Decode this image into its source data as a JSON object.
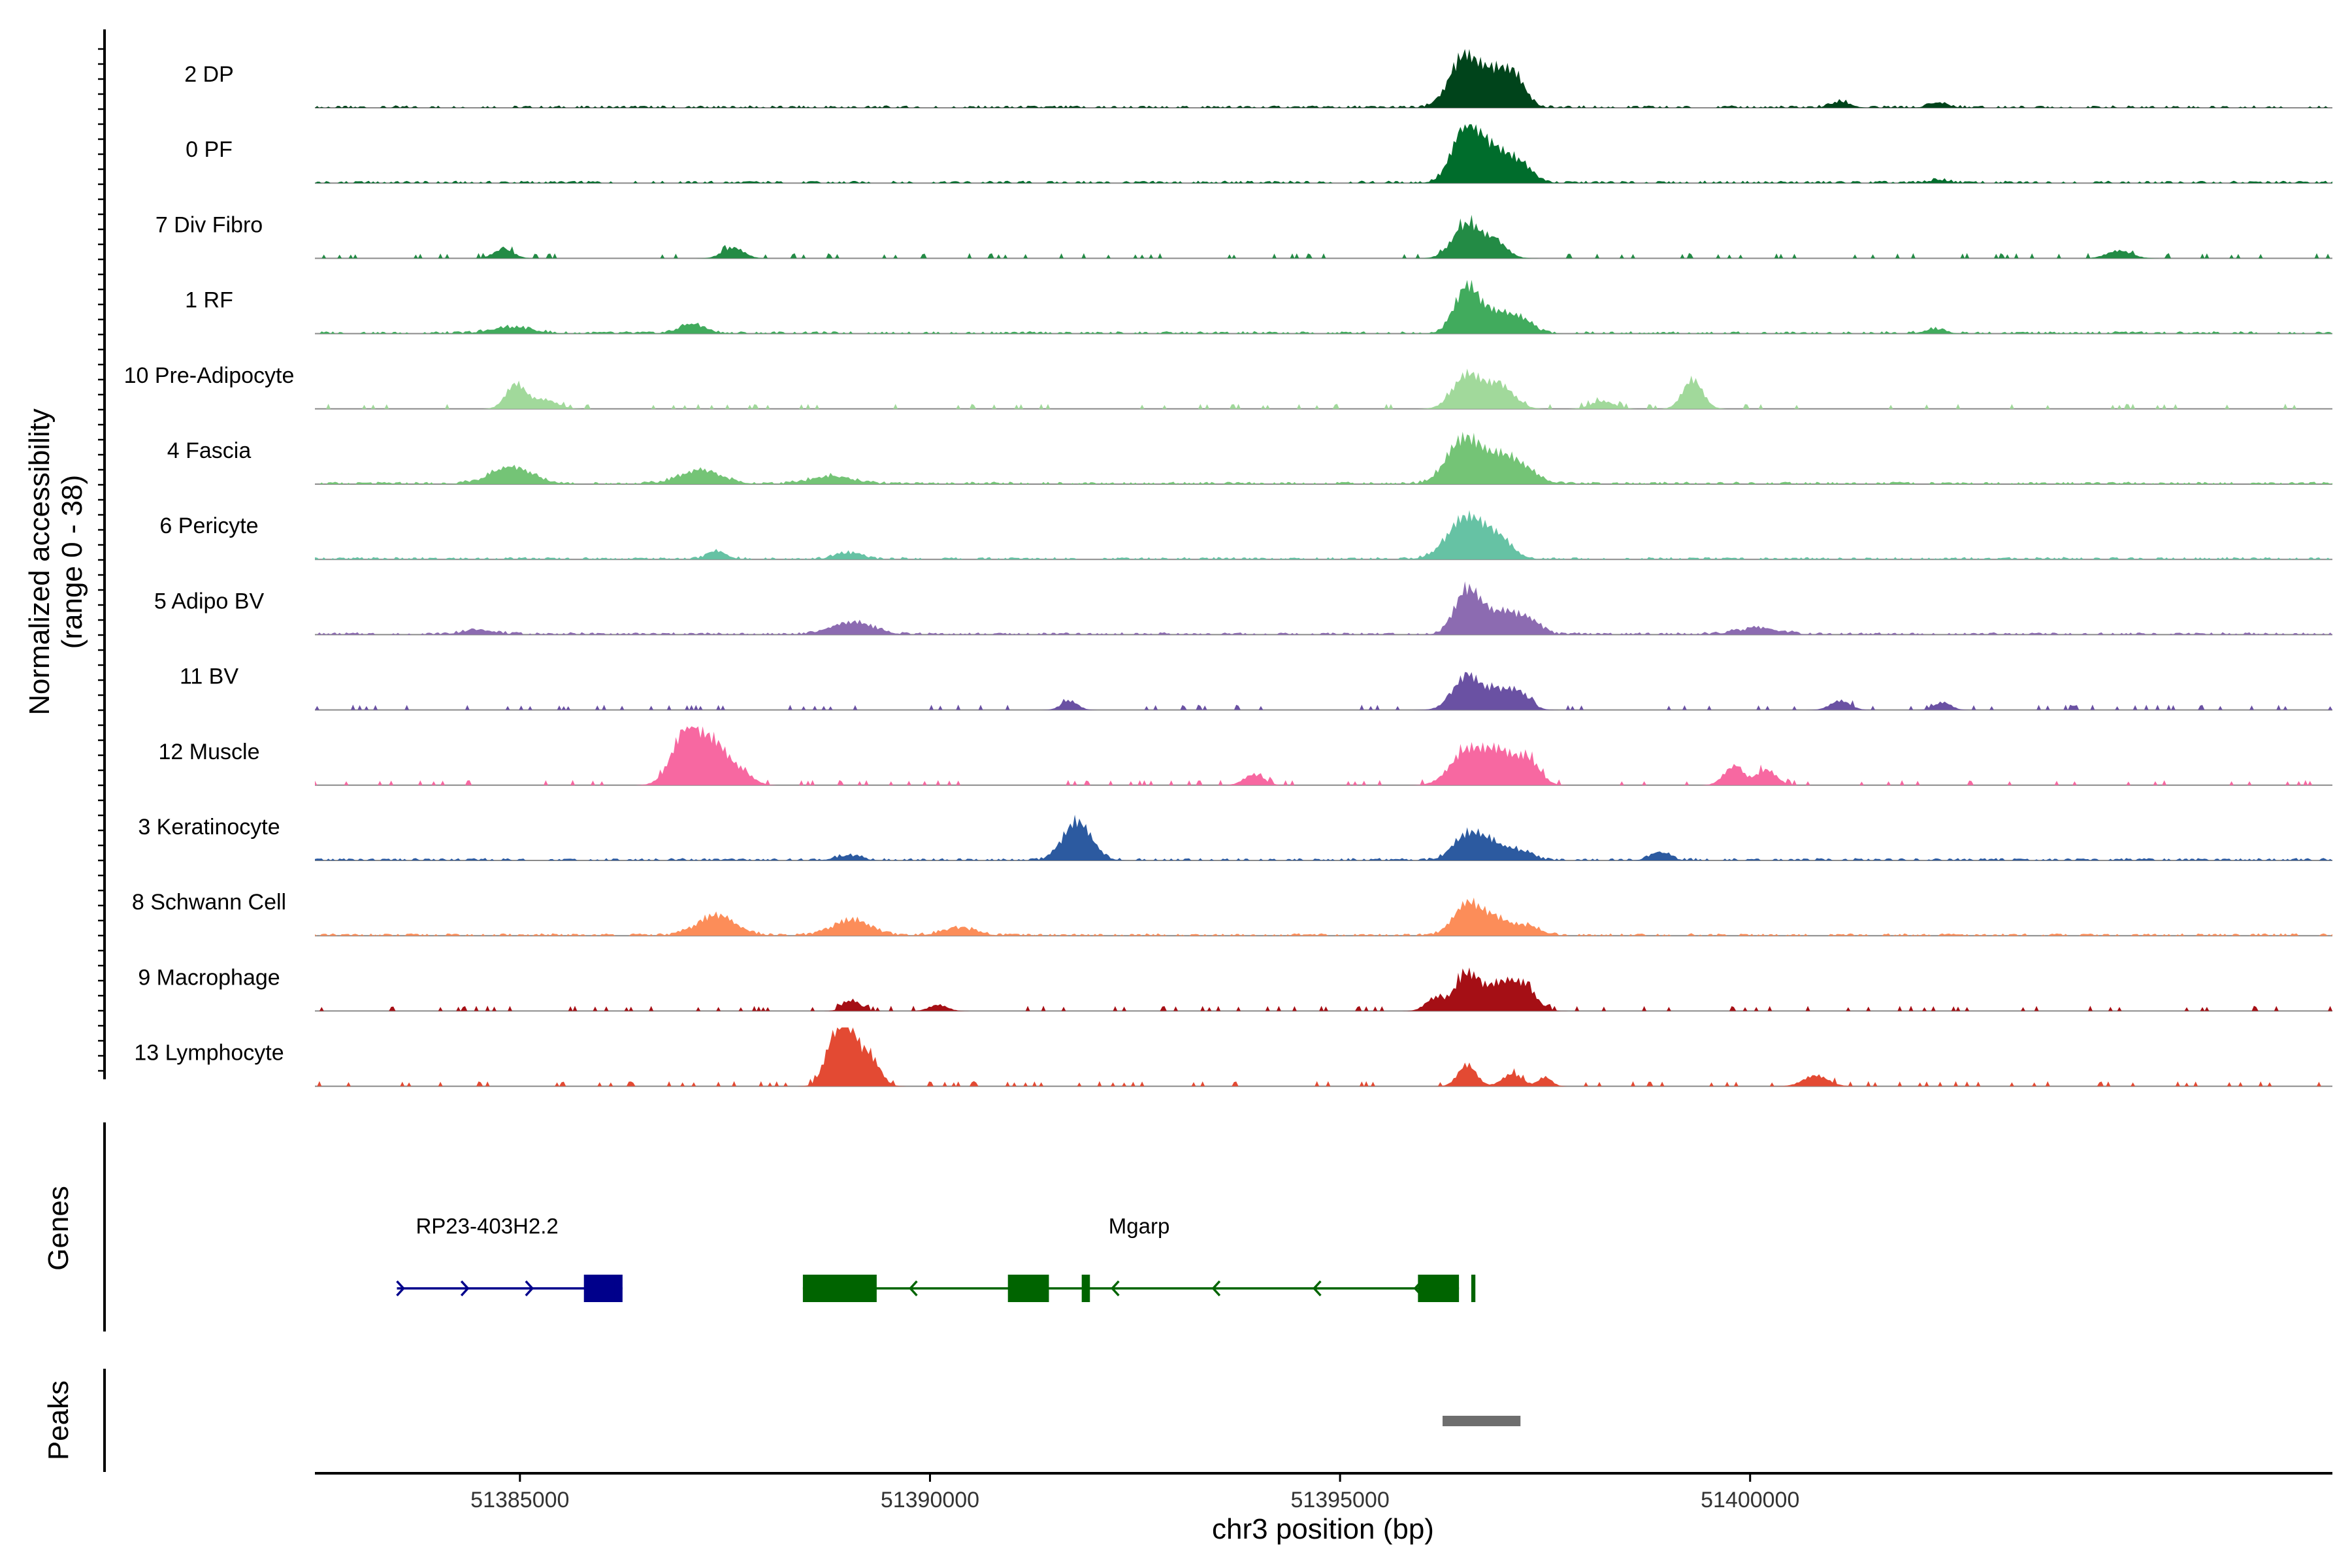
{
  "chart_data": {
    "type": "area",
    "title": "",
    "ylabel_line1": "Normalized accessibility",
    "ylabel_line2": "(range 0 - 38)",
    "y_range": [
      0,
      38
    ],
    "xlabel": "chr3 position (bp)",
    "xlim": [
      51382500,
      51407100
    ],
    "xticks": [
      51385000,
      51390000,
      51395000,
      51400000
    ],
    "xtick_labels": [
      "51385000",
      "51390000",
      "51395000",
      "51400000"
    ],
    "tracks": [
      {
        "name": "2 DP",
        "color": "#00441b",
        "baseline": "low",
        "peaks": [
          [
            51396520,
            33,
            180
          ],
          [
            51396900,
            20,
            160
          ],
          [
            51397150,
            16,
            130
          ],
          [
            51401100,
            4,
            120
          ],
          [
            51402300,
            3,
            120
          ]
        ]
      },
      {
        "name": "0 PF",
        "color": "#006d2c",
        "baseline": "low",
        "peaks": [
          [
            51396550,
            38,
            170
          ],
          [
            51396900,
            18,
            150
          ],
          [
            51397200,
            12,
            150
          ],
          [
            51402300,
            2,
            120
          ]
        ]
      },
      {
        "name": "7 Div Fibro",
        "color": "#238b45",
        "baseline": "islands",
        "peaks": [
          [
            51384800,
            6,
            120
          ],
          [
            51387600,
            7,
            130
          ],
          [
            51396550,
            22,
            170
          ],
          [
            51396900,
            10,
            140
          ],
          [
            51404500,
            5,
            150
          ]
        ]
      },
      {
        "name": "1 RF",
        "color": "#41ab5d",
        "baseline": "low",
        "peaks": [
          [
            51384900,
            4,
            250
          ],
          [
            51387100,
            6,
            160
          ],
          [
            51396550,
            30,
            150
          ],
          [
            51396900,
            12,
            150
          ],
          [
            51397200,
            9,
            150
          ],
          [
            51402250,
            3,
            120
          ]
        ]
      },
      {
        "name": "10 Pre-Adipocyte",
        "color": "#a1d99b",
        "baseline": "islands",
        "peaks": [
          [
            51384950,
            16,
            120
          ],
          [
            51385300,
            6,
            150
          ],
          [
            51396550,
            22,
            170
          ],
          [
            51396950,
            15,
            170
          ],
          [
            51399300,
            19,
            120
          ],
          [
            51398200,
            5,
            140
          ]
        ]
      },
      {
        "name": "4 Fascia",
        "color": "#74c476",
        "baseline": "low",
        "peaks": [
          [
            51384900,
            11,
            250
          ],
          [
            51387200,
            9,
            250
          ],
          [
            51388800,
            5,
            250
          ],
          [
            51396500,
            28,
            200
          ],
          [
            51396900,
            13,
            200
          ],
          [
            51397200,
            10,
            200
          ]
        ]
      },
      {
        "name": "6 Pericyte",
        "color": "#66c2a4",
        "baseline": "low",
        "peaks": [
          [
            51396550,
            27,
            230
          ],
          [
            51396950,
            10,
            170
          ],
          [
            51387400,
            5,
            120
          ],
          [
            51389000,
            4,
            160
          ]
        ]
      },
      {
        "name": "5 Adipo BV",
        "color": "#8c6bb1",
        "baseline": "low",
        "peaks": [
          [
            51389050,
            8,
            250
          ],
          [
            51396550,
            28,
            150
          ],
          [
            51396950,
            14,
            200
          ],
          [
            51397300,
            8,
            150
          ],
          [
            51384500,
            3,
            200
          ],
          [
            51400100,
            4,
            250
          ]
        ]
      },
      {
        "name": "11 BV",
        "color": "#6a51a3",
        "baseline": "islands",
        "peaks": [
          [
            51396550,
            22,
            170
          ],
          [
            51396950,
            11,
            160
          ],
          [
            51397200,
            9,
            130
          ],
          [
            51391700,
            6,
            100
          ],
          [
            51401100,
            6,
            120
          ],
          [
            51402350,
            5,
            100
          ]
        ]
      },
      {
        "name": "12 Muscle",
        "color": "#f768a1",
        "baseline": "islands",
        "peaks": [
          [
            51387050,
            38,
            180
          ],
          [
            51387400,
            22,
            150
          ],
          [
            51387700,
            8,
            140
          ],
          [
            51396550,
            22,
            200
          ],
          [
            51396950,
            20,
            180
          ],
          [
            51397300,
            15,
            140
          ],
          [
            51399800,
            12,
            120
          ],
          [
            51400200,
            10,
            120
          ],
          [
            51393950,
            7,
            120
          ]
        ]
      },
      {
        "name": "3 Keratinocyte",
        "color": "#2c5aa0",
        "baseline": "low",
        "peaks": [
          [
            51391800,
            25,
            170
          ],
          [
            51396550,
            16,
            170
          ],
          [
            51396850,
            10,
            150
          ],
          [
            51397200,
            6,
            150
          ],
          [
            51398900,
            5,
            120
          ],
          [
            51389000,
            3,
            150
          ]
        ]
      },
      {
        "name": "8 Schwann Cell",
        "color": "#fc8d59",
        "baseline": "low",
        "peaks": [
          [
            51387400,
            13,
            230
          ],
          [
            51389050,
            10,
            230
          ],
          [
            51390350,
            5,
            200
          ],
          [
            51396550,
            20,
            170
          ],
          [
            51396900,
            10,
            170
          ],
          [
            51397300,
            6,
            150
          ]
        ]
      },
      {
        "name": "9 Macrophage",
        "color": "#a50f15",
        "baseline": "islands",
        "peaks": [
          [
            51396550,
            24,
            150
          ],
          [
            51396950,
            17,
            160
          ],
          [
            51397250,
            15,
            140
          ],
          [
            51389050,
            7,
            100
          ],
          [
            51390100,
            4,
            110
          ],
          [
            51396150,
            8,
            110
          ]
        ]
      },
      {
        "name": "13 Lymphocyte",
        "color": "#e34a33",
        "baseline": "islands",
        "peaks": [
          [
            51389000,
            38,
            140
          ],
          [
            51388800,
            18,
            110
          ],
          [
            51389300,
            15,
            110
          ],
          [
            51396550,
            14,
            110
          ],
          [
            51397100,
            8,
            120
          ],
          [
            51397500,
            6,
            80
          ],
          [
            51400800,
            7,
            150
          ]
        ]
      }
    ],
    "genes_label": "Genes",
    "genes": [
      {
        "name": "RP23-403H2.2",
        "strand": "+",
        "color": "#00008b",
        "line": [
          51383500,
          51386250
        ],
        "exons": [
          [
            51385780,
            51386250
          ],
          [
            51386150,
            51386250
          ]
        ]
      },
      {
        "name": "Mgarp",
        "strand": "-",
        "color": "#006400",
        "line": [
          51388450,
          51396450
        ],
        "exons": [
          [
            51388450,
            51389350
          ],
          [
            51390950,
            51391450
          ],
          [
            51391850,
            51391950
          ],
          [
            51395950,
            51396450
          ],
          [
            51396600,
            51396650
          ]
        ]
      }
    ],
    "peaks_label": "Peaks",
    "peak_regions": [
      [
        51396250,
        51397200
      ]
    ]
  }
}
